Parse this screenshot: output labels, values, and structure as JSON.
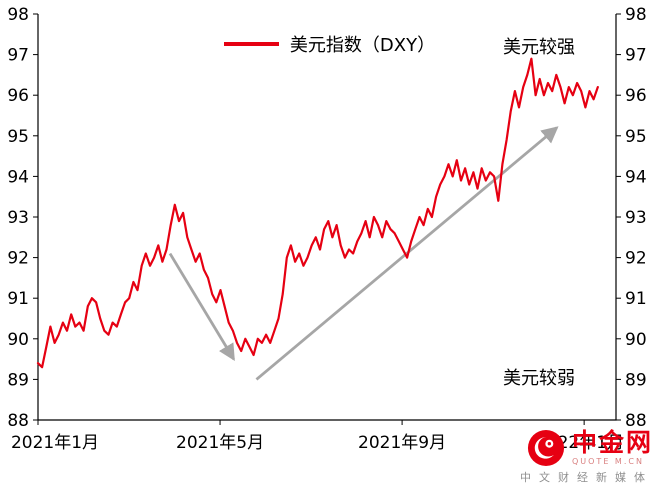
{
  "theme": {
    "line_color": "#e60012",
    "arrow_color": "#a6a6a6",
    "axis_color": "#000000",
    "text_color": "#000000",
    "brand_color": "#e60012",
    "caption_color": "#8f8f8f"
  },
  "chart_data": {
    "type": "line",
    "title": "",
    "legend_label": "美元指数（DXY）",
    "ylim": [
      88,
      98
    ],
    "yticks": [
      88,
      89,
      90,
      91,
      92,
      93,
      94,
      95,
      96,
      97,
      98
    ],
    "xticks": [
      {
        "month": 0,
        "label": "2021年1月"
      },
      {
        "month": 4,
        "label": "2021年5月"
      },
      {
        "month": 8,
        "label": "2021年9月"
      },
      {
        "month": 12,
        "label": "2022年1月"
      }
    ],
    "months_span": 12.7,
    "data_month_end": 12.3,
    "grid": false,
    "legend_position": "top-center",
    "series": [
      {
        "name": "美元指数（DXY）",
        "values": [
          89.4,
          89.3,
          89.8,
          90.3,
          89.9,
          90.1,
          90.4,
          90.2,
          90.6,
          90.3,
          90.4,
          90.2,
          90.8,
          91.0,
          90.9,
          90.5,
          90.2,
          90.1,
          90.4,
          90.3,
          90.6,
          90.9,
          91.0,
          91.4,
          91.2,
          91.8,
          92.1,
          91.8,
          92.0,
          92.3,
          91.9,
          92.2,
          92.8,
          93.3,
          92.9,
          93.1,
          92.5,
          92.2,
          91.9,
          92.1,
          91.7,
          91.5,
          91.1,
          90.9,
          91.2,
          90.8,
          90.4,
          90.2,
          89.9,
          89.7,
          90.0,
          89.8,
          89.6,
          90.0,
          89.9,
          90.1,
          89.9,
          90.2,
          90.5,
          91.1,
          92.0,
          92.3,
          91.9,
          92.1,
          91.8,
          92.0,
          92.3,
          92.5,
          92.2,
          92.7,
          92.9,
          92.5,
          92.8,
          92.3,
          92.0,
          92.2,
          92.1,
          92.4,
          92.6,
          92.9,
          92.5,
          93.0,
          92.8,
          92.5,
          92.9,
          92.7,
          92.6,
          92.4,
          92.2,
          92.0,
          92.4,
          92.7,
          93.0,
          92.8,
          93.2,
          93.0,
          93.5,
          93.8,
          94.0,
          94.3,
          94.0,
          94.4,
          93.9,
          94.2,
          93.8,
          94.1,
          93.7,
          94.2,
          93.9,
          94.1,
          94.0,
          93.4,
          94.3,
          94.9,
          95.6,
          96.1,
          95.7,
          96.2,
          96.5,
          96.9,
          96.0,
          96.4,
          96.0,
          96.3,
          96.1,
          96.5,
          96.2,
          95.8,
          96.2,
          96.0,
          96.3,
          96.1,
          95.7,
          96.1,
          95.9,
          96.2
        ]
      }
    ],
    "arrows": [
      {
        "from": {
          "month": 2.9,
          "value": 92.1
        },
        "to": {
          "month": 4.3,
          "value": 89.5
        }
      },
      {
        "from": {
          "month": 4.8,
          "value": 89.0
        },
        "to": {
          "month": 11.4,
          "value": 95.2
        }
      }
    ],
    "annotations": [
      {
        "id": "dollar-strong",
        "text": "美元较强"
      },
      {
        "id": "dollar-weak",
        "text": "美元较弱"
      }
    ]
  },
  "watermark": {
    "brand": "中金网",
    "sub": "QUOTE M.CN",
    "caption": "中文财经新媒体"
  }
}
